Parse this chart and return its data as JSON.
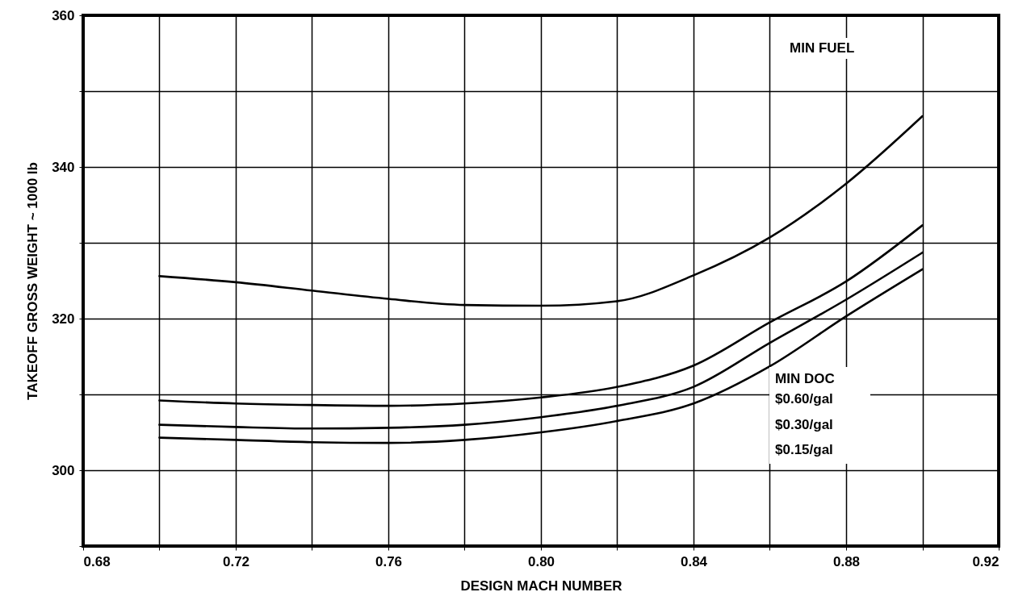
{
  "chart_data": {
    "type": "line",
    "xlabel": "DESIGN MACH NUMBER",
    "ylabel": "TAKEOFF GROSS WEIGHT ~ 1000 lb",
    "x": [
      0.7,
      0.72,
      0.74,
      0.76,
      0.78,
      0.8,
      0.82,
      0.84,
      0.86,
      0.88,
      0.9
    ],
    "series": [
      {
        "color": "#000000",
        "values": [
          325.6,
          324.8,
          323.7,
          322.6,
          321.8,
          321.7,
          322.3,
          325.7,
          330.7,
          337.8,
          346.7
        ]
      },
      {
        "color": "#000000",
        "values": [
          309.2,
          308.8,
          308.6,
          308.5,
          308.8,
          309.6,
          311.0,
          313.8,
          319.5,
          324.9,
          332.3
        ]
      },
      {
        "color": "#000000",
        "values": [
          306.0,
          305.7,
          305.5,
          305.6,
          306.0,
          307.0,
          308.5,
          311.0,
          316.8,
          322.5,
          328.7
        ]
      },
      {
        "color": "#000000",
        "values": [
          304.3,
          304.0,
          303.7,
          303.6,
          304.0,
          305.0,
          306.5,
          308.8,
          313.7,
          320.3,
          326.5
        ]
      }
    ],
    "xlim": [
      0.68,
      0.92
    ],
    "xticks": [
      0.68,
      {
        "value": 0.7,
        "label": null
      },
      0.72,
      {
        "value": 0.74,
        "label": null
      },
      0.76,
      {
        "value": 0.78,
        "label": null
      },
      {
        "value": 0.8,
        "label": "0.80"
      },
      {
        "value": 0.82,
        "label": null
      },
      0.84,
      {
        "value": 0.86,
        "label": null
      },
      0.88,
      {
        "value": 0.9,
        "label": null
      },
      0.92
    ],
    "ylim": [
      290,
      360
    ],
    "yticks": [
      {
        "value": 290,
        "label": null
      },
      300,
      {
        "value": 310,
        "label": null
      },
      320,
      {
        "value": 330,
        "label": null
      },
      340,
      {
        "value": 350,
        "label": null
      },
      360
    ],
    "grid": true,
    "marker": "none",
    "line_style": "solid",
    "annotations": [
      "MIN FUEL",
      "MIN DOC",
      "$0.60/gal",
      "$0.30/gal",
      "$0.15/gal"
    ]
  }
}
